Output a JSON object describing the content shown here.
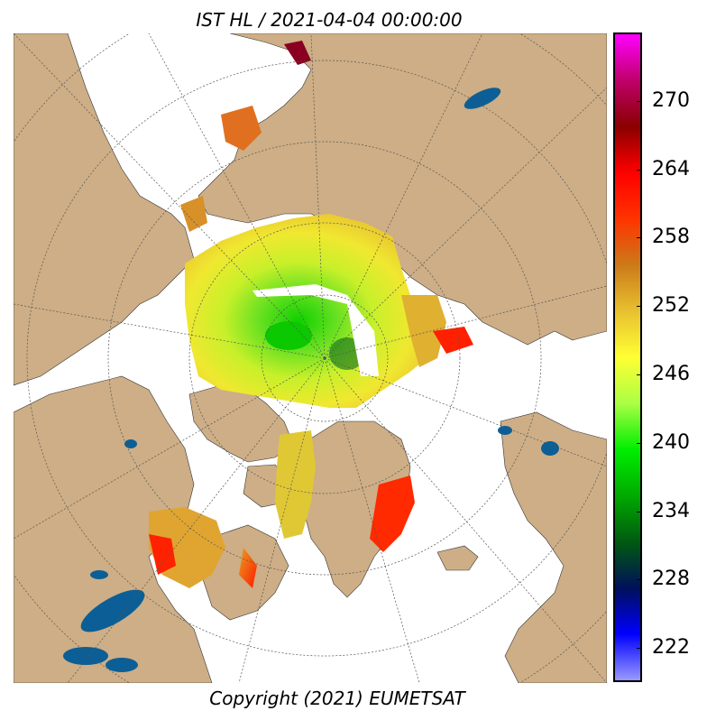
{
  "header": {
    "title": "IST HL / 2021-04-04 00:00:00"
  },
  "footer": {
    "copyright": "Copyright (2021)  EUMETSAT"
  },
  "colorbar": {
    "min": 219,
    "max": 276,
    "ticks": [
      "270",
      "264",
      "258",
      "252",
      "246",
      "240",
      "234",
      "228",
      "222"
    ],
    "tick_values": [
      270,
      264,
      258,
      252,
      246,
      240,
      234,
      228,
      222
    ],
    "stops": [
      "#9a9aff",
      "#0000ff",
      "#00105a",
      "#005a10",
      "#00aa00",
      "#00ee00",
      "#aaff44",
      "#ffff33",
      "#e8c030",
      "#cc7a18",
      "#ff3300",
      "#ff0000",
      "#8a0000",
      "#c0006a",
      "#ff00ff"
    ]
  },
  "map": {
    "land_color": "#cdae86",
    "water_color": "#ffffff",
    "lake_color": "#0b5f96",
    "ice_center_color": "#1ed400"
  }
}
